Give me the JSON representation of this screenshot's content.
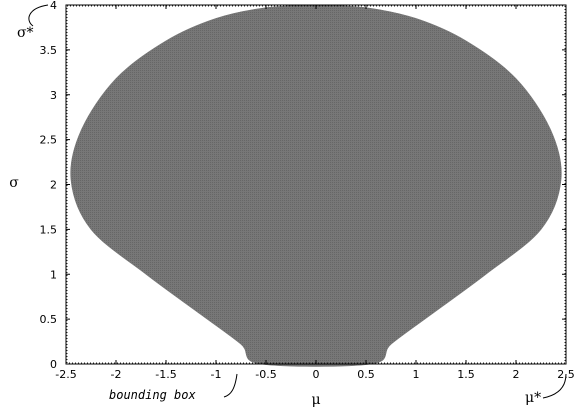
{
  "chart_data": {
    "type": "area",
    "xlabel": "μ",
    "ylabel": "σ",
    "xlim": [
      -2.5,
      2.5
    ],
    "ylim": [
      0,
      4
    ],
    "grid": false,
    "xticks": [
      -2.5,
      -2,
      -1.5,
      -1,
      -0.5,
      0,
      0.5,
      1,
      1.5,
      2,
      2.5
    ],
    "yticks": [
      0,
      0.5,
      1,
      1.5,
      2,
      2.5,
      3,
      3.5,
      4
    ],
    "xtick_labels": [
      "-2.5",
      "-2",
      "-1.5",
      "-1",
      "-0.5",
      "0",
      "0.5",
      "1",
      "1.5",
      "2",
      "2.5"
    ],
    "ytick_labels": [
      "0",
      "0.5",
      "1",
      "1.5",
      "2",
      "2.5",
      "3",
      "3.5",
      "4"
    ],
    "region": {
      "fill_color": "#777777",
      "boundary_right": [
        [
          0,
          4.0
        ],
        [
          0.5,
          3.97
        ],
        [
          1.0,
          3.85
        ],
        [
          1.5,
          3.6
        ],
        [
          2.0,
          3.18
        ],
        [
          2.35,
          2.6
        ],
        [
          2.45,
          2.05
        ],
        [
          2.25,
          1.5
        ],
        [
          1.7,
          1.0
        ],
        [
          1.15,
          0.55
        ],
        [
          0.75,
          0.22
        ],
        [
          0.55,
          0.0
        ]
      ]
    },
    "annotations": {
      "sigma_star": "σ*",
      "mu_star": "μ*",
      "bounding_box": "bounding box"
    }
  }
}
